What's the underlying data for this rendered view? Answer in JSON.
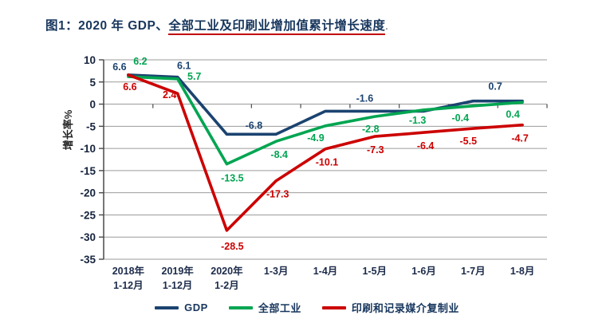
{
  "title": {
    "prefix": "图1：2020 年 GDP、",
    "underlined": "全部工业及印刷业增加值累计增长速度",
    "suffix": "."
  },
  "y_axis": {
    "label": "增长率%",
    "ticks": [
      "10",
      "5",
      "0",
      "-5",
      "-10",
      "-15",
      "-20",
      "-25",
      "-30",
      "-35"
    ]
  },
  "chart_data": {
    "type": "line",
    "title": "图1：2020年GDP、全部工业及印刷业增加值累计增长速度",
    "ylabel": "增长率%",
    "xlabel": "",
    "ylim": [
      -35,
      10
    ],
    "ytick_step": 5,
    "grid": true,
    "legend_position": "bottom",
    "categories": [
      "2018年 1-12月",
      "2019年 1-12月",
      "2020年 1-2月",
      "1-3月",
      "1-4月",
      "1-5月",
      "1-6月",
      "1-7月",
      "1-8月"
    ],
    "category_display_lines": [
      [
        "2018年",
        "1-12月"
      ],
      [
        "2019年",
        "1-12月"
      ],
      [
        "2020年",
        "1-2月"
      ],
      [
        "1-3月"
      ],
      [
        "1-4月"
      ],
      [
        "1-5月"
      ],
      [
        "1-6月"
      ],
      [
        "1-7月"
      ],
      [
        "1-8月"
      ]
    ],
    "series": [
      {
        "name": "GDP",
        "color": "#1b4370",
        "values": [
          6.6,
          6.1,
          -6.8,
          -6.8,
          -1.6,
          -1.6,
          -1.6,
          0.7,
          0.7
        ],
        "point_labels": [
          {
            "text": "6.6",
            "i": 0,
            "v": 6.6,
            "dx": -11,
            "dy": -6
          },
          {
            "text": "6.1",
            "i": 1,
            "v": 6.1,
            "dx": 8,
            "dy": -10
          },
          {
            "text": "-6.8",
            "i": 2.55,
            "v": -6.8,
            "dx": 0,
            "dy": -7
          },
          {
            "text": "-1.6",
            "i": 4.8,
            "v": -1.6,
            "dx": 0,
            "dy": -12
          },
          {
            "text": "0.7",
            "i": 7.45,
            "v": 0.7,
            "dx": 0,
            "dy": -14
          }
        ]
      },
      {
        "name": "全部工业",
        "color": "#00a551",
        "values": [
          6.2,
          5.7,
          -13.5,
          -8.4,
          -4.9,
          -2.8,
          -1.3,
          -0.4,
          0.4
        ],
        "point_labels": [
          {
            "text": "6.2",
            "i": 0,
            "v": 6.2,
            "dx": 15,
            "dy": -15
          },
          {
            "text": "5.7",
            "i": 1,
            "v": 5.7,
            "dx": 21,
            "dy": 1
          },
          {
            "text": "-13.5",
            "i": 2,
            "v": -13.5,
            "dx": 7,
            "dy": 22
          },
          {
            "text": "-8.4",
            "i": 3,
            "v": -8.4,
            "dx": 4,
            "dy": 21
          },
          {
            "text": "-4.9",
            "i": 4,
            "v": -4.9,
            "dx": -12,
            "dy": 19
          },
          {
            "text": "-2.8",
            "i": 5,
            "v": -2.8,
            "dx": -5,
            "dy": 20
          },
          {
            "text": "-1.3",
            "i": 6,
            "v": -1.3,
            "dx": -8,
            "dy": 17
          },
          {
            "text": "-0.4",
            "i": 7,
            "v": -0.4,
            "dx": -16,
            "dy": 19
          },
          {
            "text": "0.4",
            "i": 8,
            "v": 0.4,
            "dx": -12,
            "dy": 19
          }
        ]
      },
      {
        "name": "印刷和记录媒介复制业",
        "color": "#cc0000",
        "values": [
          6.6,
          2.4,
          -28.5,
          -17.3,
          -10.1,
          -7.3,
          -6.4,
          -5.5,
          -4.7
        ],
        "point_labels": [
          {
            "text": "6.6",
            "i": 0,
            "v": 6.6,
            "dx": 2,
            "dy": 19
          },
          {
            "text": "2.4",
            "i": 1,
            "v": 2.4,
            "dx": -10,
            "dy": 6
          },
          {
            "text": "-28.5",
            "i": 2,
            "v": -28.5,
            "dx": 7,
            "dy": 24
          },
          {
            "text": "-17.3",
            "i": 3,
            "v": -17.3,
            "dx": 2,
            "dy": 21
          },
          {
            "text": "-10.1",
            "i": 4,
            "v": -10.1,
            "dx": 2,
            "dy": 21
          },
          {
            "text": "-7.3",
            "i": 5,
            "v": -7.3,
            "dx": 1,
            "dy": 21
          },
          {
            "text": "-6.4",
            "i": 6,
            "v": -6.4,
            "dx": 2,
            "dy": 21
          },
          {
            "text": "-5.5",
            "i": 7,
            "v": -5.5,
            "dx": -6,
            "dy": 20
          },
          {
            "text": "-4.7",
            "i": 8,
            "v": -4.7,
            "dx": -3,
            "dy": 21
          }
        ]
      }
    ]
  }
}
